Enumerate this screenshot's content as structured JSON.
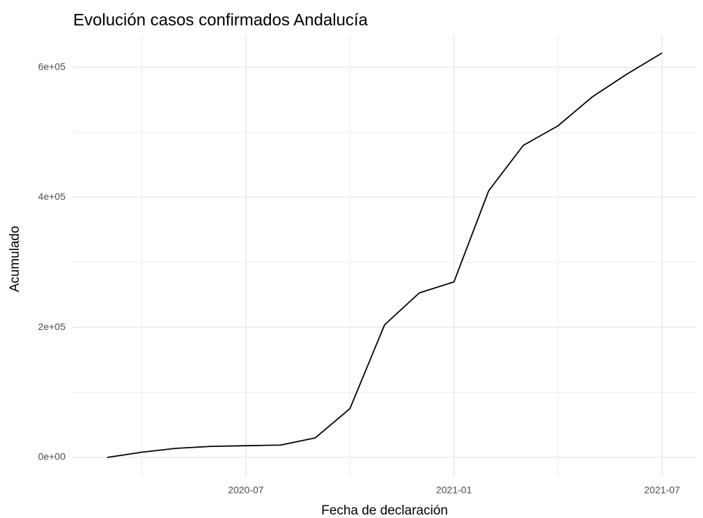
{
  "chart_data": {
    "type": "line",
    "title": "Evolución casos confirmados Andalucía",
    "x_label": "Fecha de declaración",
    "y_label": "Acumulado",
    "x": [
      "2020-03",
      "2020-04",
      "2020-05",
      "2020-06",
      "2020-07",
      "2020-08",
      "2020-09",
      "2020-10",
      "2020-11",
      "2020-12",
      "2021-01",
      "2021-02",
      "2021-03",
      "2021-04",
      "2021-05",
      "2021-06",
      "2021-07"
    ],
    "series": [
      {
        "name": "Acumulado",
        "color": "#000000",
        "values": [
          0,
          8000,
          14000,
          17000,
          18000,
          19000,
          30000,
          75000,
          204000,
          253000,
          270000,
          410000,
          480000,
          510000,
          555000,
          590000,
          622000
        ]
      }
    ],
    "xlim": [
      "2020-02",
      "2021-08"
    ],
    "xticks": [
      "2020-07",
      "2021-01",
      "2021-07"
    ],
    "xminor": [
      "2020-04",
      "2020-10",
      "2021-04"
    ],
    "ylim": [
      -30000,
      650000
    ],
    "yticks": [
      {
        "value": 0,
        "label": "0e+00"
      },
      {
        "value": 200000,
        "label": "2e+05"
      },
      {
        "value": 400000,
        "label": "4e+05"
      },
      {
        "value": 600000,
        "label": "6e+05"
      }
    ],
    "yminor": [
      100000,
      300000,
      500000
    ],
    "grid": true
  }
}
